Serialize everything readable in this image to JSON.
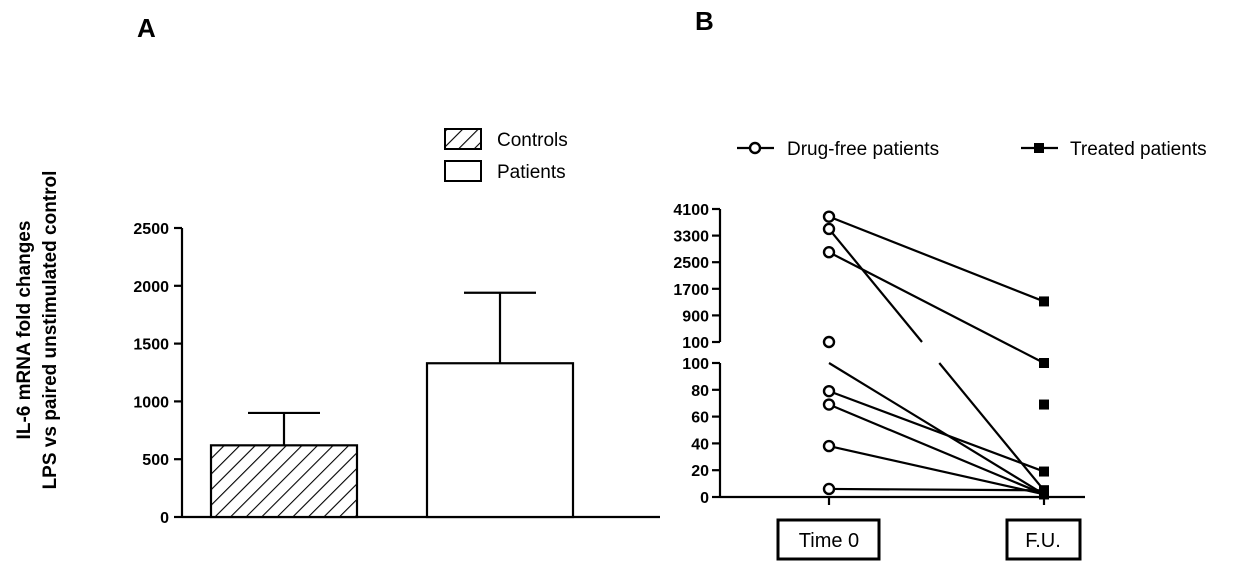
{
  "panel_labels": [
    "A",
    "B"
  ],
  "chart_data": [
    {
      "type": "bar",
      "panel": "A",
      "ylabel_lines": [
        "IL-6 mRNA fold changes",
        "LPS vs paired unstimulated control"
      ],
      "ylim": [
        0,
        2500
      ],
      "yticks": [
        "0",
        "500",
        "1000",
        "1500",
        "2000",
        "2500"
      ],
      "legend": [
        {
          "label": "Controls",
          "pattern": "hatched"
        },
        {
          "label": "Patients",
          "pattern": "open"
        }
      ],
      "series": [
        {
          "name": "Controls",
          "mean": 620,
          "error": 900,
          "pattern": "hatched"
        },
        {
          "name": "Patients",
          "mean": 1330,
          "error": 1940,
          "pattern": "open"
        }
      ],
      "grid": false
    },
    {
      "type": "line",
      "panel": "B",
      "categories": [
        "Time 0",
        "F.U."
      ],
      "legend": [
        {
          "label": "Drug-free patients",
          "marker": "open-circle"
        },
        {
          "label": "Treated patients",
          "marker": "filled-square"
        }
      ],
      "broken_axis": true,
      "upper_yticks": [
        "100",
        "900",
        "1700",
        "2500",
        "3300",
        "4100"
      ],
      "lower_yticks": [
        "0",
        "20",
        "40",
        "60",
        "80",
        "100"
      ],
      "lower_segment_range": [
        0,
        100
      ],
      "upper_segment_range": [
        100,
        4100
      ],
      "lines": [
        {
          "time0": 3870,
          "fu": 1320
        },
        {
          "time0": 3500,
          "fu": 5
        },
        {
          "time0": 2800,
          "fu": 100
        },
        {
          "time0": 100,
          "fu": 2
        },
        {
          "time0": 79,
          "fu": 19
        },
        {
          "time0": 69,
          "fu": 2
        },
        {
          "time0": 38,
          "fu": 2
        },
        {
          "time0": 6,
          "fu": 5
        }
      ],
      "fu_extra_points": [
        69
      ]
    }
  ]
}
